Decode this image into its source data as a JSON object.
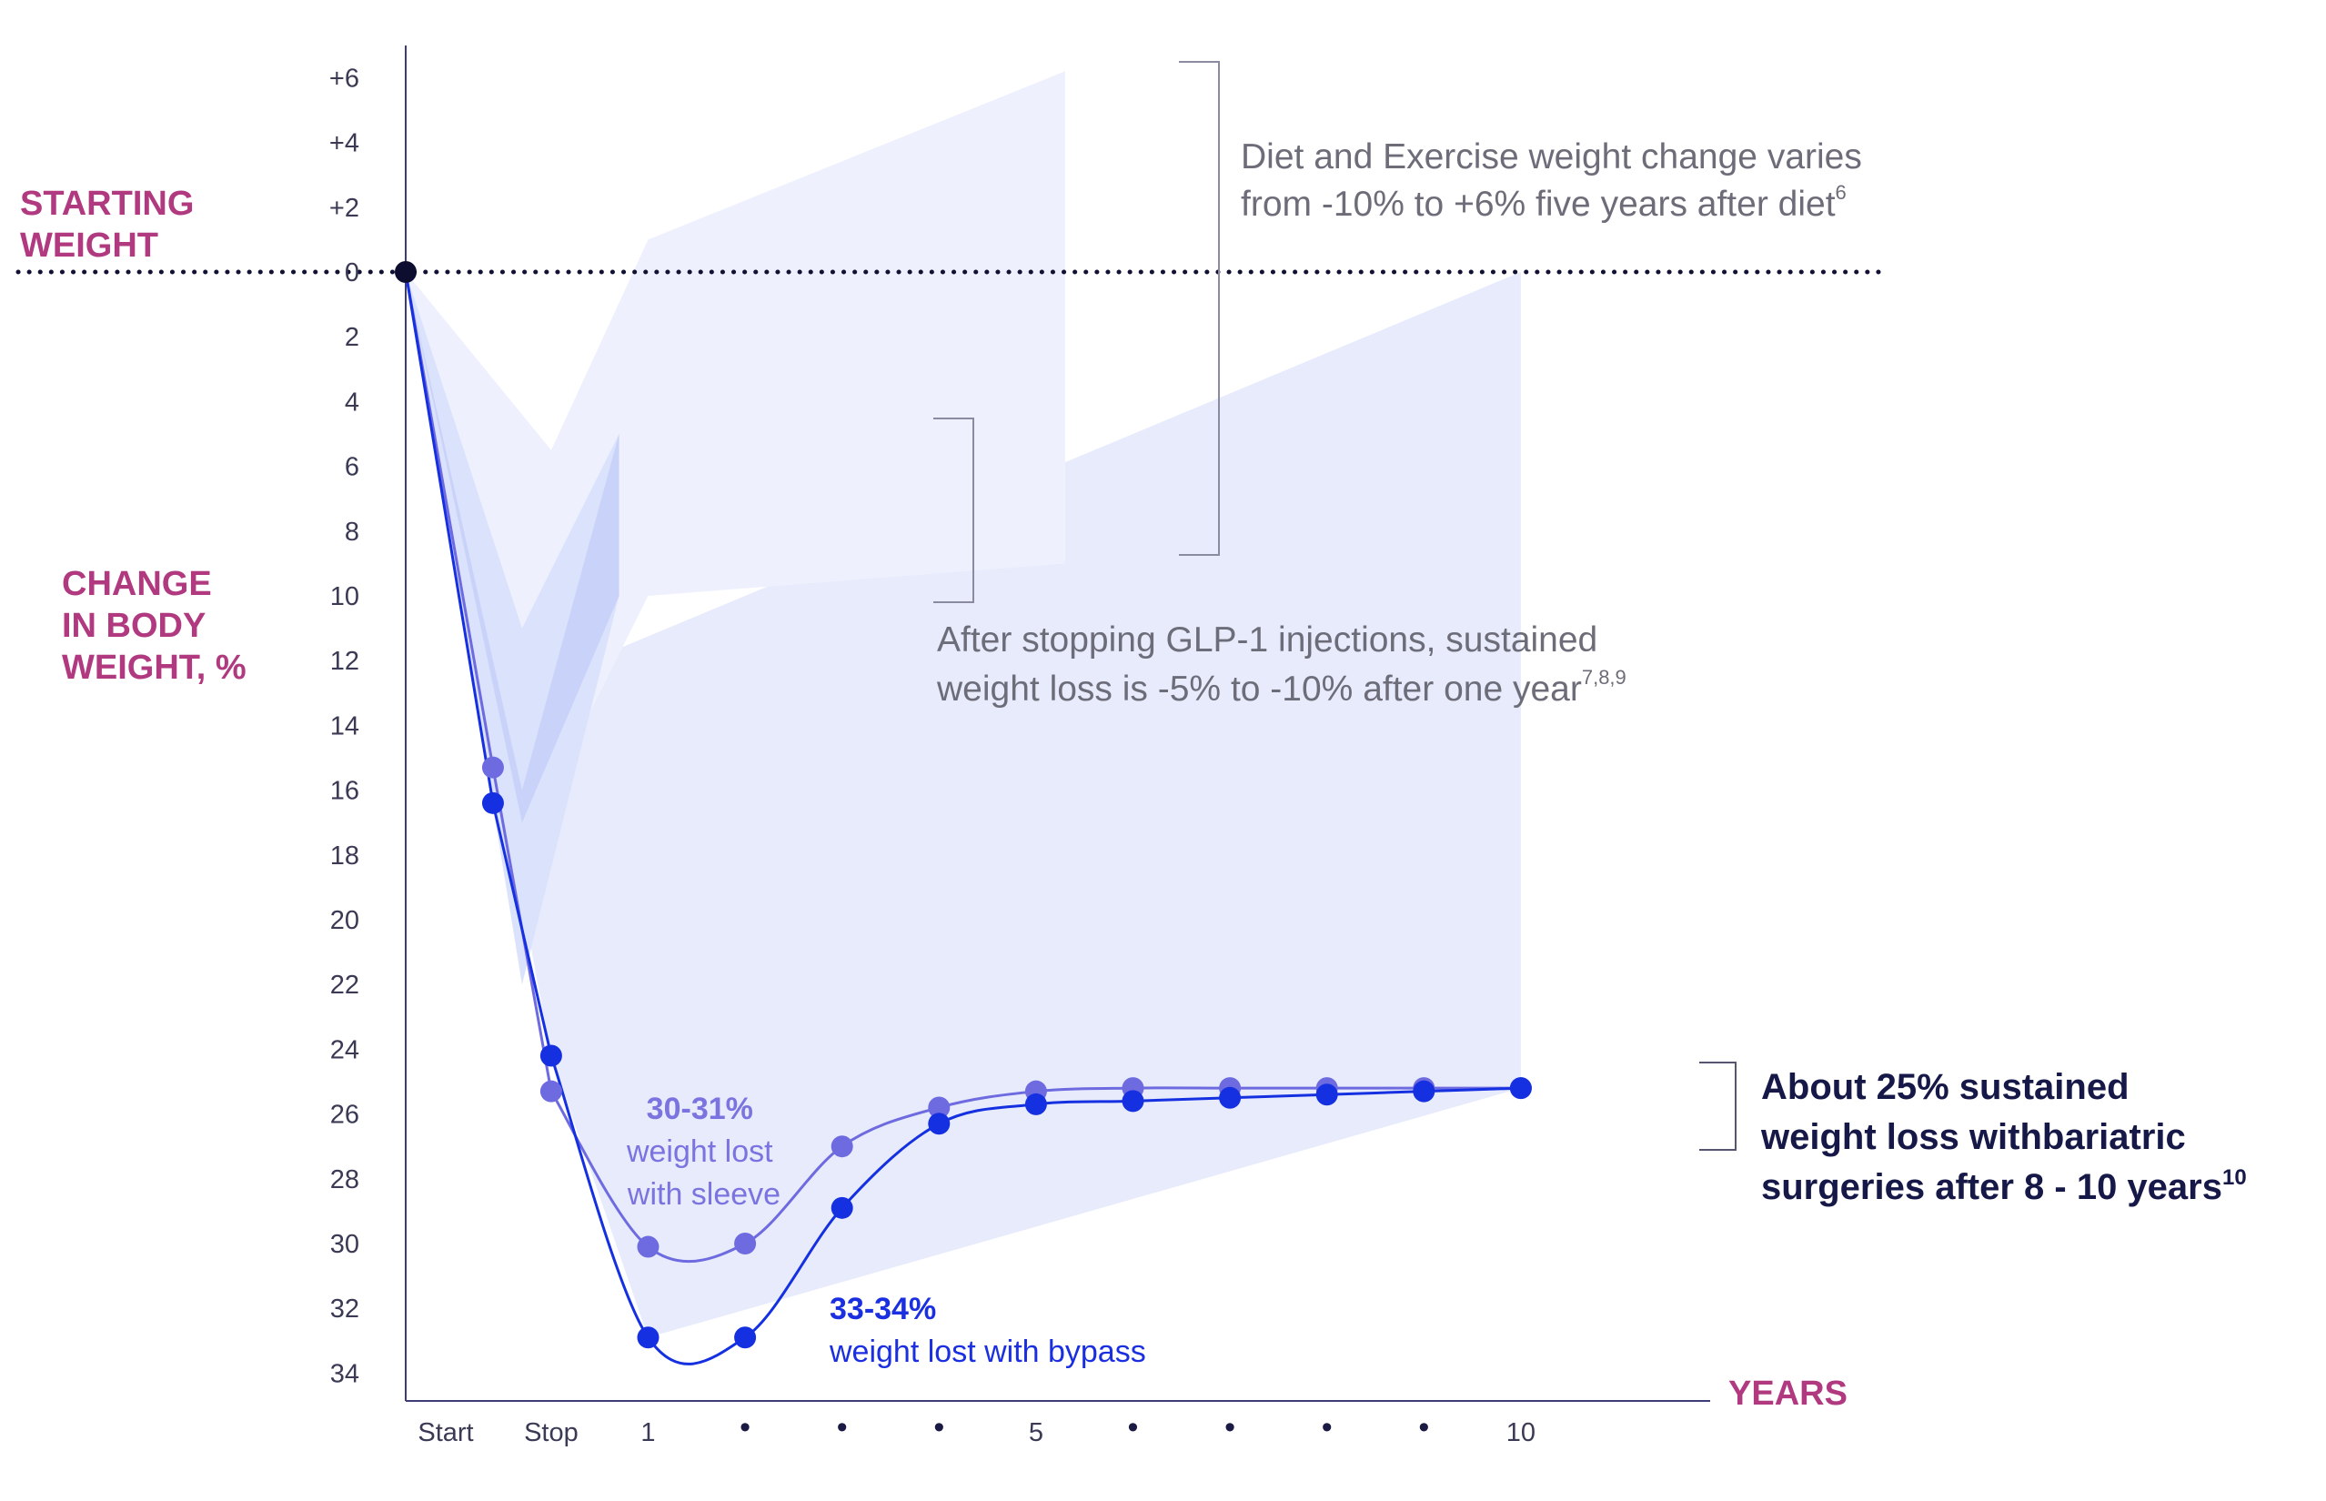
{
  "chart_data": {
    "type": "line",
    "y_axis": {
      "title_lines": [
        "CHANGE",
        "IN BODY",
        "WEIGHT, %"
      ],
      "range": [
        6,
        -34
      ],
      "ticks": [
        {
          "value": 6,
          "label": "+6"
        },
        {
          "value": 4,
          "label": "+4"
        },
        {
          "value": 2,
          "label": "+2"
        },
        {
          "value": 0,
          "label": "0"
        },
        {
          "value": -2,
          "label": "2"
        },
        {
          "value": -4,
          "label": "4"
        },
        {
          "value": -6,
          "label": "6"
        },
        {
          "value": -8,
          "label": "8"
        },
        {
          "value": -10,
          "label": "10"
        },
        {
          "value": -12,
          "label": "12"
        },
        {
          "value": -14,
          "label": "14"
        },
        {
          "value": -16,
          "label": "16"
        },
        {
          "value": -18,
          "label": "18"
        },
        {
          "value": -20,
          "label": "20"
        },
        {
          "value": -22,
          "label": "22"
        },
        {
          "value": -24,
          "label": "24"
        },
        {
          "value": -26,
          "label": "26"
        },
        {
          "value": -28,
          "label": "28"
        },
        {
          "value": -30,
          "label": "30"
        },
        {
          "value": -32,
          "label": "32"
        },
        {
          "value": -34,
          "label": "34"
        }
      ]
    },
    "x_axis": {
      "title": "YEARS",
      "ticks": [
        {
          "pos": 0,
          "label": "Start"
        },
        {
          "pos": 1.5,
          "label": "Stop"
        },
        {
          "pos": 2.5,
          "label": "1"
        },
        {
          "pos": 3.5,
          "label": "•"
        },
        {
          "pos": 4.5,
          "label": "•"
        },
        {
          "pos": 5.5,
          "label": "•"
        },
        {
          "pos": 6.5,
          "label": "5"
        },
        {
          "pos": 7.5,
          "label": "•"
        },
        {
          "pos": 8.5,
          "label": "•"
        },
        {
          "pos": 9.5,
          "label": "•"
        },
        {
          "pos": 10.5,
          "label": "•"
        },
        {
          "pos": 11.5,
          "label": "10"
        }
      ]
    },
    "reference_line": {
      "value": 0,
      "label_lines": [
        "STARTING",
        "WEIGHT"
      ],
      "style": "dotted"
    },
    "origin_point": {
      "x": 0,
      "y": 0
    },
    "series": [
      {
        "name": "weight lost with sleeve",
        "color": "#6e6ae0",
        "points": [
          [
            0.9,
            -15.3
          ],
          [
            1.5,
            -25.3
          ],
          [
            2.5,
            -30.1
          ],
          [
            3.5,
            -30.0
          ],
          [
            4.5,
            -27.0
          ],
          [
            5.5,
            -25.8
          ],
          [
            6.5,
            -25.3
          ],
          [
            7.5,
            -25.2
          ],
          [
            8.5,
            -25.2
          ],
          [
            9.5,
            -25.2
          ],
          [
            10.5,
            -25.2
          ],
          [
            11.5,
            -25.2
          ]
        ]
      },
      {
        "name": "weight lost with bypass",
        "color": "#1530e0",
        "points": [
          [
            0.9,
            -16.4
          ],
          [
            1.5,
            -24.2
          ],
          [
            2.5,
            -32.9
          ],
          [
            3.5,
            -32.9
          ],
          [
            4.5,
            -28.9
          ],
          [
            5.5,
            -26.3
          ],
          [
            6.5,
            -25.7
          ],
          [
            7.5,
            -25.6
          ],
          [
            8.5,
            -25.5
          ],
          [
            9.5,
            -25.4
          ],
          [
            10.5,
            -25.3
          ],
          [
            11.5,
            -25.2
          ]
        ]
      }
    ],
    "bands": [
      {
        "name": "bariatric range",
        "color": "#e7ebfc",
        "upper": [
          [
            0,
            0
          ],
          [
            1.5,
            -12.5
          ],
          [
            11.5,
            0
          ]
        ],
        "lower": [
          [
            0,
            0
          ],
          [
            1.5,
            -24.2
          ],
          [
            2.5,
            -32.9
          ],
          [
            11.5,
            -25.2
          ]
        ]
      },
      {
        "name": "diet and exercise",
        "color": "#eef1fd",
        "upper": [
          [
            0,
            0
          ],
          [
            1.5,
            -5.5
          ],
          [
            2.5,
            1
          ],
          [
            6.8,
            6.2
          ]
        ],
        "lower": [
          [
            0,
            0
          ],
          [
            1.5,
            -16
          ],
          [
            2.5,
            -10
          ],
          [
            6.8,
            -9
          ]
        ]
      },
      {
        "name": "glp-1 after stopping",
        "color": "#dbe2fb",
        "upper": [
          [
            0,
            0
          ],
          [
            1.2,
            -11
          ],
          [
            2.2,
            -5
          ]
        ],
        "lower": [
          [
            0,
            0
          ],
          [
            1.2,
            -22
          ],
          [
            2.2,
            -10
          ]
        ]
      },
      {
        "name": "glp-1 inner",
        "color": "#c9d2f8",
        "upper": [
          [
            0,
            0
          ],
          [
            1.2,
            -16
          ],
          [
            2.2,
            -5
          ]
        ],
        "lower": [
          [
            0,
            0
          ],
          [
            1.2,
            -17
          ],
          [
            2.2,
            -10
          ]
        ]
      }
    ],
    "annotations": {
      "diet": {
        "lines": [
          "Diet and Exercise weight change varies",
          "from -10% to +6% five years after diet"
        ],
        "sup": "6"
      },
      "glp1": {
        "lines": [
          "After stopping GLP-1 injections, sustained",
          "weight loss is -5% to -10% after one year"
        ],
        "sup": "7,8,9"
      },
      "sleeve": {
        "pct": "30-31%",
        "lines": [
          "weight lost",
          "with sleeve"
        ]
      },
      "bypass": {
        "pct": "33-34%",
        "line": "weight lost with bypass"
      },
      "bariatric": {
        "lines": [
          "About 25% sustained",
          "weight loss withbariatric",
          "surgeries after 8 - 10 years"
        ],
        "sup": "10"
      }
    }
  }
}
